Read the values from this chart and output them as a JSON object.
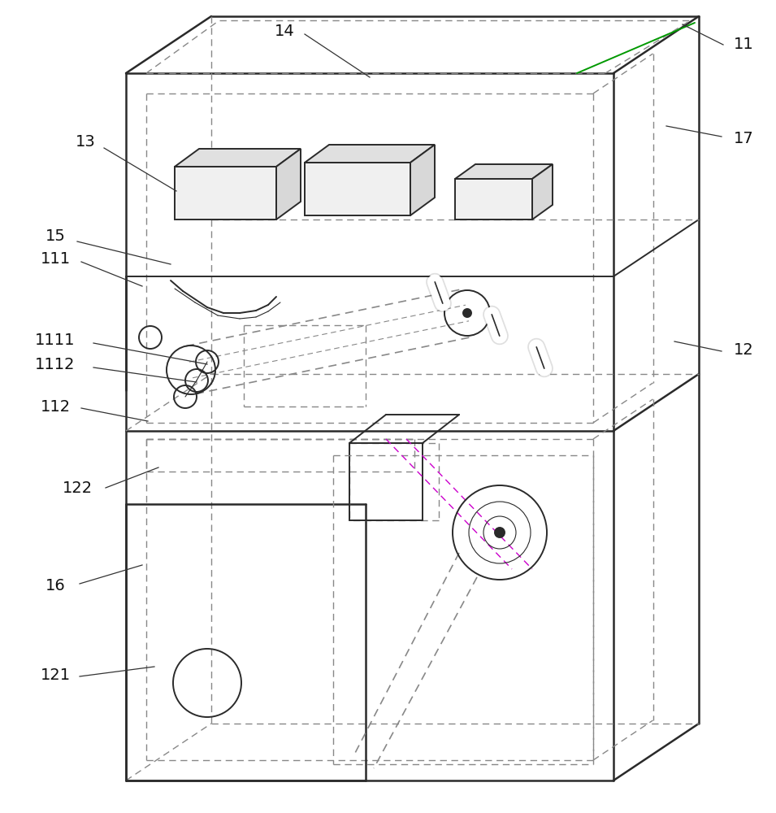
{
  "bg": "#ffffff",
  "lc": "#2a2a2a",
  "dc": "#888888",
  "gc": "#009900",
  "pc": "#cc00cc",
  "lw_outer": 1.8,
  "lw_inner": 1.4,
  "lw_dash": 1.0,
  "lw_thin": 0.8
}
